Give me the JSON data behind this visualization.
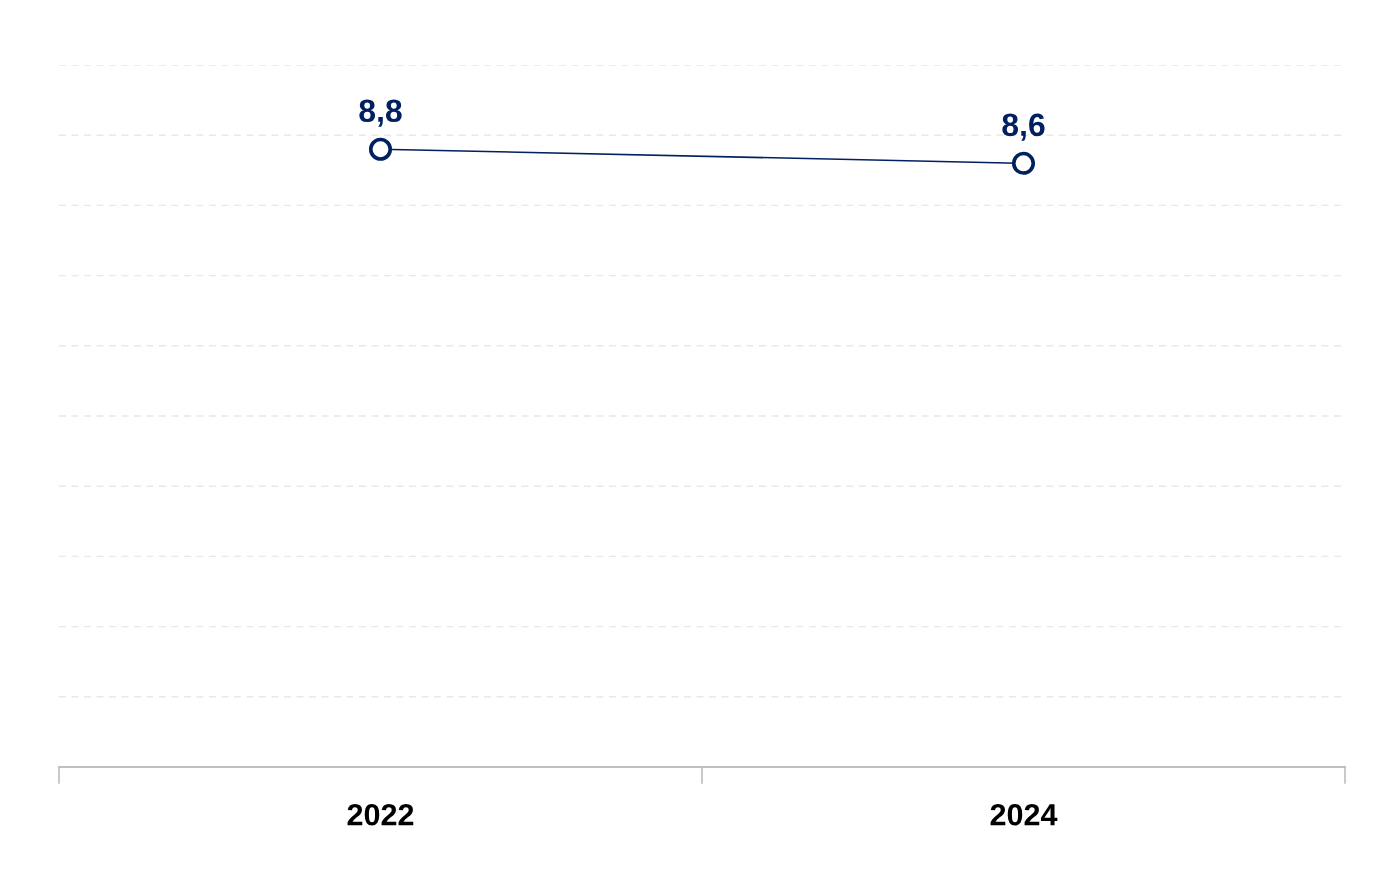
{
  "chart_data": {
    "type": "line",
    "categories": [
      "2022",
      "2024"
    ],
    "series": [
      {
        "color": "#002060",
        "values": [
          8.8,
          8.6
        ],
        "value_labels": [
          "8,8",
          "8,6"
        ]
      }
    ],
    "ylim": [
      0,
      10
    ],
    "yticks": [
      {
        "value": 0,
        "label": null
      },
      {
        "value": 1,
        "label": null
      },
      {
        "value": 2,
        "label": null
      },
      {
        "value": 3,
        "label": null
      },
      {
        "value": 4,
        "label": null
      },
      {
        "value": 5,
        "label": null
      },
      {
        "value": 6,
        "label": null
      },
      {
        "value": 7,
        "label": null
      },
      {
        "value": 8,
        "label": null
      },
      {
        "value": 9,
        "label": null
      },
      {
        "value": 10,
        "label": null
      }
    ],
    "grid": "y",
    "tick_labels": "x",
    "marker": "circle",
    "line_style": "solid"
  }
}
